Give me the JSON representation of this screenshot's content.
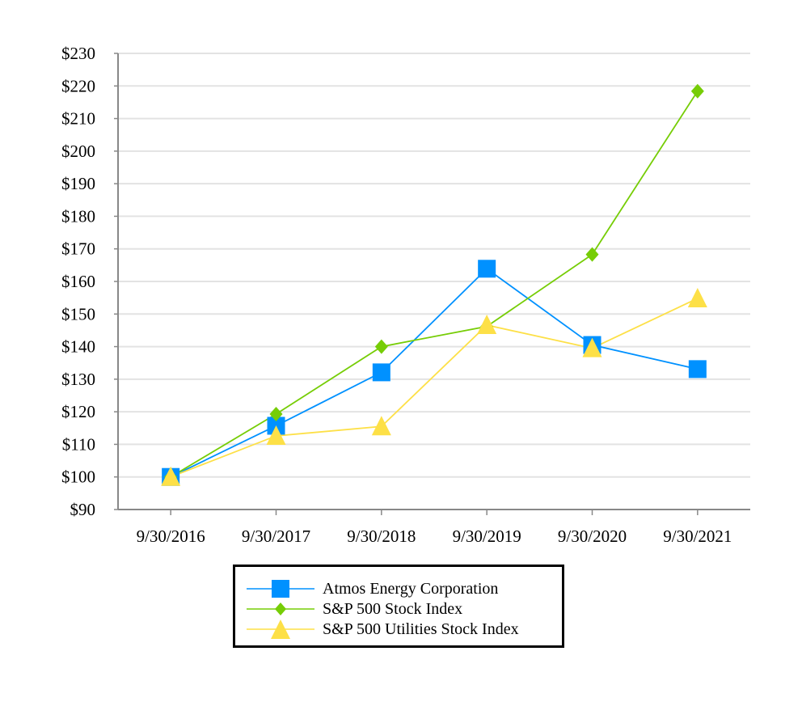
{
  "chart_data": {
    "type": "line",
    "categories": [
      "9/30/2016",
      "9/30/2017",
      "9/30/2018",
      "9/30/2019",
      "9/30/2020",
      "9/30/2021"
    ],
    "ylim": [
      90,
      230
    ],
    "yticks": [
      "$90",
      "$100",
      "$110",
      "$120",
      "$130",
      "$140",
      "$150",
      "$160",
      "$170",
      "$180",
      "$190",
      "$200",
      "$210",
      "$220",
      "$230"
    ],
    "grid": true,
    "legend_position": "bottom",
    "series": [
      {
        "name": "Atmos Energy Corporation",
        "color": "#0091ff",
        "marker": "square",
        "values": [
          100,
          115.7,
          132.1,
          163.9,
          140.5,
          133.1
        ]
      },
      {
        "name": "S&P 500 Stock Index",
        "color": "#76cd06",
        "marker": "diamond",
        "values": [
          100,
          119.3,
          140.0,
          146.2,
          168.3,
          218.4
        ]
      },
      {
        "name": "S&P 500 Utilities Stock Index",
        "color": "#fde047",
        "marker": "triangle",
        "values": [
          100,
          112.6,
          115.5,
          146.6,
          139.5,
          154.8
        ]
      }
    ]
  }
}
